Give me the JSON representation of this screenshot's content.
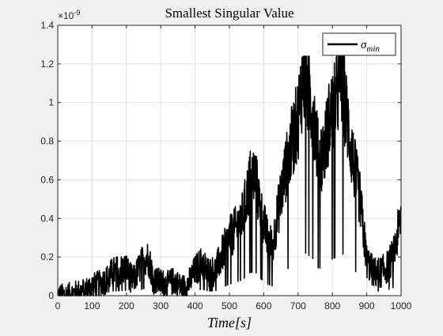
{
  "chart_data": {
    "type": "line",
    "title": "Smallest Singular Value",
    "xlabel": "Time[s]",
    "ylabel": "",
    "exponent_label": "×10",
    "exponent_power": "-9",
    "xlim": [
      0,
      1000
    ],
    "ylim": [
      0,
      1.4
    ],
    "xticks": [
      0,
      100,
      200,
      300,
      400,
      500,
      600,
      700,
      800,
      900,
      1000
    ],
    "yticks": [
      0,
      0.2,
      0.4,
      0.6,
      0.8,
      1,
      1.2,
      1.4
    ],
    "ytick_labels": [
      "0",
      "0.2",
      "0.4",
      "0.6",
      "0.8",
      "1",
      "1.2",
      "1.4"
    ],
    "grid": true,
    "legend_position": "top-right",
    "legend": {
      "base": "σ",
      "subscript": "min"
    },
    "series": [
      {
        "color": "#000000",
        "envelope": [
          [
            0,
            0.0
          ],
          [
            20,
            0.005
          ],
          [
            40,
            0.01
          ],
          [
            60,
            0.02
          ],
          [
            80,
            0.03
          ],
          [
            100,
            0.05
          ],
          [
            120,
            0.06
          ],
          [
            140,
            0.08
          ],
          [
            160,
            0.12
          ],
          [
            180,
            0.13
          ],
          [
            200,
            0.14
          ],
          [
            210,
            0.1
          ],
          [
            220,
            0.08
          ],
          [
            240,
            0.15
          ],
          [
            255,
            0.2
          ],
          [
            265,
            0.19
          ],
          [
            280,
            0.08
          ],
          [
            300,
            0.07
          ],
          [
            320,
            0.06
          ],
          [
            340,
            0.08
          ],
          [
            360,
            0.04
          ],
          [
            380,
            0.06
          ],
          [
            400,
            0.13
          ],
          [
            420,
            0.17
          ],
          [
            440,
            0.12
          ],
          [
            460,
            0.13
          ],
          [
            480,
            0.22
          ],
          [
            500,
            0.3
          ],
          [
            520,
            0.35
          ],
          [
            540,
            0.42
          ],
          [
            560,
            0.6
          ],
          [
            575,
            0.62
          ],
          [
            590,
            0.45
          ],
          [
            610,
            0.3
          ],
          [
            625,
            0.25
          ],
          [
            640,
            0.42
          ],
          [
            660,
            0.62
          ],
          [
            680,
            0.78
          ],
          [
            700,
            0.92
          ],
          [
            715,
            1.15
          ],
          [
            730,
            1.05
          ],
          [
            745,
            0.95
          ],
          [
            760,
            0.7
          ],
          [
            775,
            0.75
          ],
          [
            790,
            0.9
          ],
          [
            810,
            1.0
          ],
          [
            825,
            1.15
          ],
          [
            840,
            0.95
          ],
          [
            860,
            0.7
          ],
          [
            880,
            0.5
          ],
          [
            900,
            0.18
          ],
          [
            920,
            0.12
          ],
          [
            940,
            0.12
          ],
          [
            960,
            0.15
          ],
          [
            980,
            0.22
          ],
          [
            1000,
            0.42
          ]
        ]
      }
    ]
  }
}
